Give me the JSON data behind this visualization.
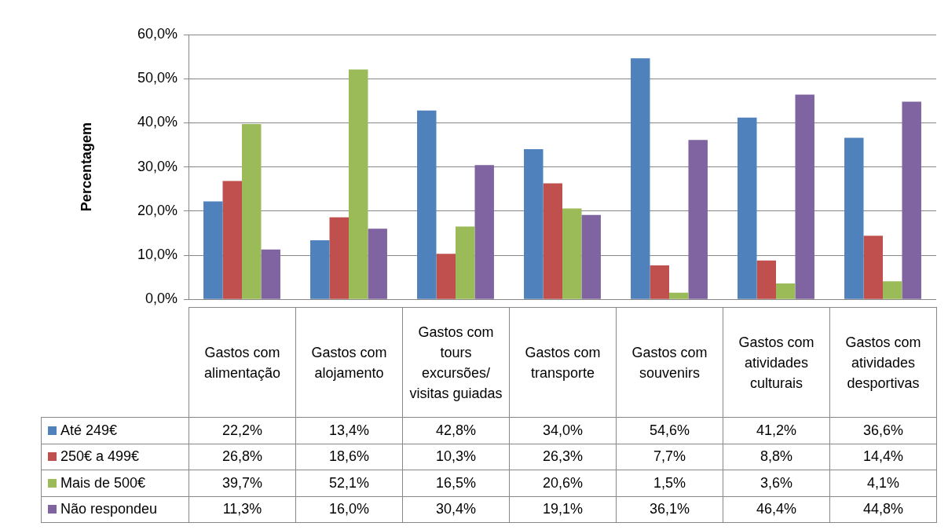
{
  "chart_data": {
    "type": "bar",
    "ylabel": "Percentagem",
    "categories": [
      "Gastos com alimentação",
      "Gastos com alojamento",
      "Gastos com tours excursões/ visitas guiadas",
      "Gastos com transporte",
      "Gastos com souvenirs",
      "Gastos com atividades culturais",
      "Gastos com atividades desportivas"
    ],
    "series": [
      {
        "name": "Até 249€",
        "color": "#4f81bd",
        "values": [
          22.2,
          13.4,
          42.8,
          34.0,
          54.6,
          41.2,
          36.6
        ],
        "value_labels": [
          "22,2%",
          "13,4%",
          "42,8%",
          "34,0%",
          "54,6%",
          "41,2%",
          "36,6%"
        ]
      },
      {
        "name": "250€ a 499€",
        "color": "#c0504d",
        "values": [
          26.8,
          18.6,
          10.3,
          26.3,
          7.7,
          8.8,
          14.4
        ],
        "value_labels": [
          "26,8%",
          "18,6%",
          "10,3%",
          "26,3%",
          "7,7%",
          "8,8%",
          "14,4%"
        ]
      },
      {
        "name": "Mais de 500€",
        "color": "#9bbb59",
        "values": [
          39.7,
          52.1,
          16.5,
          20.6,
          1.5,
          3.6,
          4.1
        ],
        "value_labels": [
          "39,7%",
          "52,1%",
          "16,5%",
          "20,6%",
          "1,5%",
          "3,6%",
          "4,1%"
        ]
      },
      {
        "name": "Não respondeu",
        "color": "#8064a2",
        "values": [
          11.3,
          16.0,
          30.4,
          19.1,
          36.1,
          46.4,
          44.8
        ],
        "value_labels": [
          "11,3%",
          "16,0%",
          "30,4%",
          "19,1%",
          "36,1%",
          "46,4%",
          "44,8%"
        ]
      }
    ],
    "ylim": [
      0,
      60
    ],
    "yticks": [
      {
        "value": 0,
        "label": "0,0%"
      },
      {
        "value": 10,
        "label": "10,0%"
      },
      {
        "value": 20,
        "label": "20,0%"
      },
      {
        "value": 30,
        "label": "30,0%"
      },
      {
        "value": 40,
        "label": "40,0%"
      },
      {
        "value": 50,
        "label": "50,0%"
      },
      {
        "value": 60,
        "label": "60,0%"
      }
    ],
    "grid": "y",
    "legend": "bottom"
  }
}
